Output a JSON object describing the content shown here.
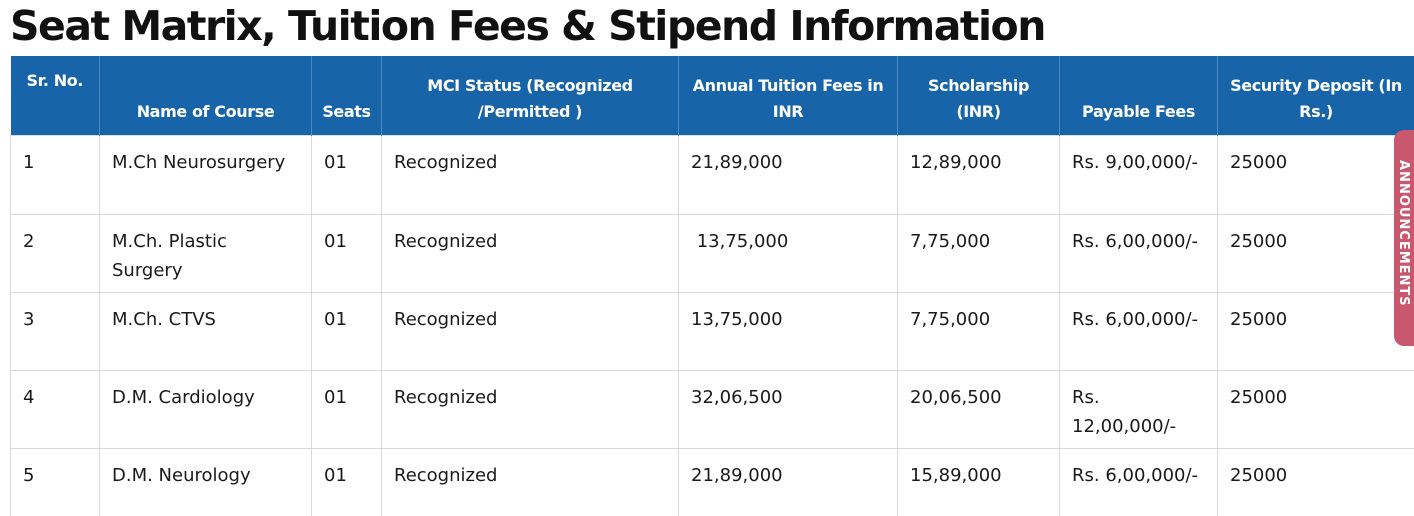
{
  "page": {
    "title": "Seat Matrix, Tuition Fees & Stipend Information"
  },
  "table": {
    "headers": [
      "Sr. No.",
      "Name of Course",
      "Seats",
      "MCI Status (Recognized /Permitted )",
      "Annual Tuition Fees in INR",
      "Scholarship (INR)",
      "Payable Fees",
      "Security Deposit (In Rs.)"
    ],
    "rows": [
      [
        "1",
        "M.Ch Neurosurgery",
        "01",
        "Recognized",
        "21,89,000",
        "12,89,000",
        "Rs. 9,00,000/-",
        "25000"
      ],
      [
        "2",
        "M.Ch. Plastic Surgery",
        "01",
        "Recognized",
        " 13,75,000",
        "7,75,000",
        "Rs. 6,00,000/-",
        "25000"
      ],
      [
        "3",
        "M.Ch. CTVS",
        "01",
        "Recognized",
        "13,75,000",
        "7,75,000",
        "Rs. 6,00,000/-",
        "25000"
      ],
      [
        "4",
        "D.M. Cardiology",
        "01",
        "Recognized",
        "32,06,500",
        "20,06,500",
        "Rs. 12,00,000/-",
        "25000"
      ],
      [
        "5",
        "D.M. Neurology",
        "01",
        "Recognized",
        "21,89,000",
        "15,89,000",
        "Rs. 6,00,000/-",
        "25000"
      ]
    ]
  },
  "announcements_tab": {
    "label": "ANNOUNCEMENTS"
  },
  "colors": {
    "header_bg": "#1765a8",
    "header_text": "#ffffff",
    "announcements_tab_bg": "#c9576d"
  }
}
